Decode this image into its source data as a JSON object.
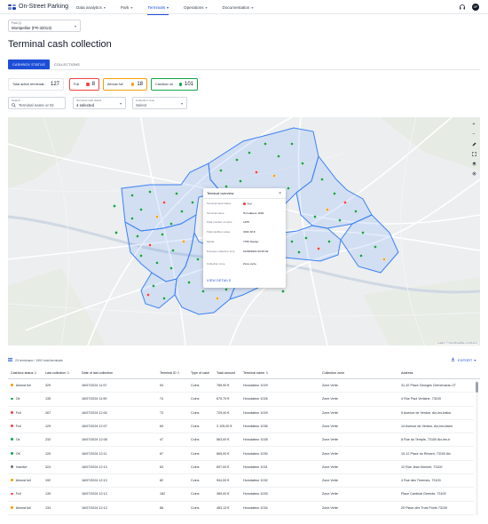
{
  "brand": {
    "name": "On-Street Parking",
    "logo_icon": "grid-logo-icon"
  },
  "nav": {
    "items": [
      {
        "label": "Data analytics",
        "active": false
      },
      {
        "label": "Park",
        "active": false
      },
      {
        "label": "Terminals",
        "active": true
      },
      {
        "label": "Operations",
        "active": false
      },
      {
        "label": "Documentation",
        "active": false
      }
    ],
    "support_icon": "headset-icon",
    "avatar_initials": "OP"
  },
  "park_selector": {
    "label": "Park (1)",
    "value": "Montpellier (FR-32013)"
  },
  "page_title": "Terminal cash collection",
  "tabs": [
    {
      "label": "CASHBOX STATUS",
      "active": true
    },
    {
      "label": "COLLECTIONS",
      "active": false
    }
  ],
  "stats": {
    "total": {
      "label": "Total active terminals:",
      "value": "127"
    },
    "full": {
      "label": "Full",
      "value": "8",
      "color": "#ef4444"
    },
    "almost_full": {
      "label": "Almost full",
      "value": "18",
      "color": "#f59e0b"
    },
    "ok": {
      "label": "Cashbox ok",
      "value": "101",
      "color": "#16a34a"
    }
  },
  "filters": {
    "search": {
      "label": "Search",
      "value": "Terminal name or ID"
    },
    "status": {
      "label": "Terminal cash status",
      "value": "4 selected"
    },
    "zone": {
      "label": "Collection zone",
      "value": "Select"
    }
  },
  "map": {
    "controls": [
      "plus-icon",
      "minus-icon",
      "pencil-icon",
      "fullscreen-icon",
      "layers-icon",
      "locate-icon"
    ],
    "attribution": "Leaflet | © OpenStreetMap contributors"
  },
  "popup": {
    "title": "Terminal overview",
    "rows": [
      {
        "key": "Terminal cash status",
        "value": "Full",
        "status_dot": true
      },
      {
        "key": "Terminal name",
        "value": "Horodateur 1029"
      },
      {
        "key": "Total number of coins",
        "value": "1975"
      },
      {
        "key": "Total cashbox value",
        "value": "3152,30 €"
      },
      {
        "key": "Model",
        "value": "7766 Navigo"
      },
      {
        "key": "Previous collection time",
        "value": "01/08/2024 09:45:02"
      },
      {
        "key": "Collection zone",
        "value": "Zone verte"
      }
    ],
    "link": "VIEW DETAILS"
  },
  "table": {
    "info": "23 terminaux / 1992 total terminals",
    "export_label": "EXPORT",
    "columns": [
      "Cashbox status",
      "Last collection",
      "Date of last collection",
      "Terminal ID",
      "Type of cash",
      "Total amount",
      "Terminal name",
      "Collection zone",
      "Address"
    ],
    "status_colors": {
      "Almost full": "#f59e0b",
      "Ok": "#16a34a",
      "Full": "#ef4444",
      "Inactive": "#6b7280"
    },
    "rows": [
      {
        "status": "Almost full",
        "last": "329",
        "date": "16/07/2024 11:57",
        "id": "94",
        "cash": "Coins",
        "amount": "789,90 €",
        "name": "Horodateur 1029",
        "zone": "Zone Verte",
        "address": "31-32 Place Georges Clemenceau 27"
      },
      {
        "status": "Ok",
        "last": "135",
        "date": "16/07/2024 11:59",
        "id": "74",
        "cash": "Coins",
        "amount": "675,79 €",
        "name": "Horodateur 1026",
        "zone": "Zone Verte",
        "address": "4 Rue Paul Verlaine, 73100"
      },
      {
        "status": "Full",
        "last": "267",
        "date": "16/07/2024 12:00",
        "id": "73",
        "cash": "Coins",
        "amount": "729,40 €",
        "name": "Horodateur 1029",
        "zone": "Zone Verte",
        "address": "5 Avenue de Verdun, Aix-les-bains"
      },
      {
        "status": "Full",
        "last": "129",
        "date": "16/07/2024 12:07",
        "id": "69",
        "cash": "Coins",
        "amount": "3 125,00 €",
        "name": "Horodateur 1036",
        "zone": "Zone Verte",
        "address": "14 Avenue de Verdun, Aix-les-bains"
      },
      {
        "status": "Ok",
        "last": "232",
        "date": "16/07/2024 12:08",
        "id": "47",
        "cash": "Coins",
        "amount": "563,00 €",
        "name": "Horodateur 1028",
        "zone": "Zone Verte",
        "address": "8 Rue du Temple, 73100 Aix-les-b"
      },
      {
        "status": "OK",
        "last": "120",
        "date": "16/07/2024 12:11",
        "id": "67",
        "cash": "Coins",
        "amount": "665,00 €",
        "name": "Horodateur 1030",
        "zone": "Zone Verte",
        "address": "10-12 Place du Revard, 73100 Aix"
      },
      {
        "status": "Inactive",
        "last": "324",
        "date": "16/07/2024 12:13",
        "id": "63",
        "cash": "Coins",
        "amount": "697,00 €",
        "name": "Horodateur 1031",
        "zone": "Zone Verte",
        "address": "12 Rue Jean Monnet, 73100"
      },
      {
        "status": "Almost full",
        "last": "192",
        "date": "16/07/2024 12:13",
        "id": "82",
        "cash": "Coins",
        "amount": "904,00 €",
        "name": "Horodateur 1032",
        "zone": "Zone Verte",
        "address": "4 Rue des Thermes, 73100"
      },
      {
        "status": "Full",
        "last": "139",
        "date": "16/07/2024 12:13",
        "id": "182",
        "cash": "Coins",
        "amount": "389,00 €",
        "name": "Horodateur 1033",
        "zone": "Zone Verte",
        "address": "Place Cardinal Gerente, 73100"
      },
      {
        "status": "Almost full",
        "last": "134",
        "date": "16/07/2024 12:13",
        "id": "86",
        "cash": "Coins",
        "amount": "483,13 €",
        "name": "Horodateur 1034",
        "zone": "Zone Verte",
        "address": "20 Place des Trois Ponts 73100"
      }
    ]
  }
}
